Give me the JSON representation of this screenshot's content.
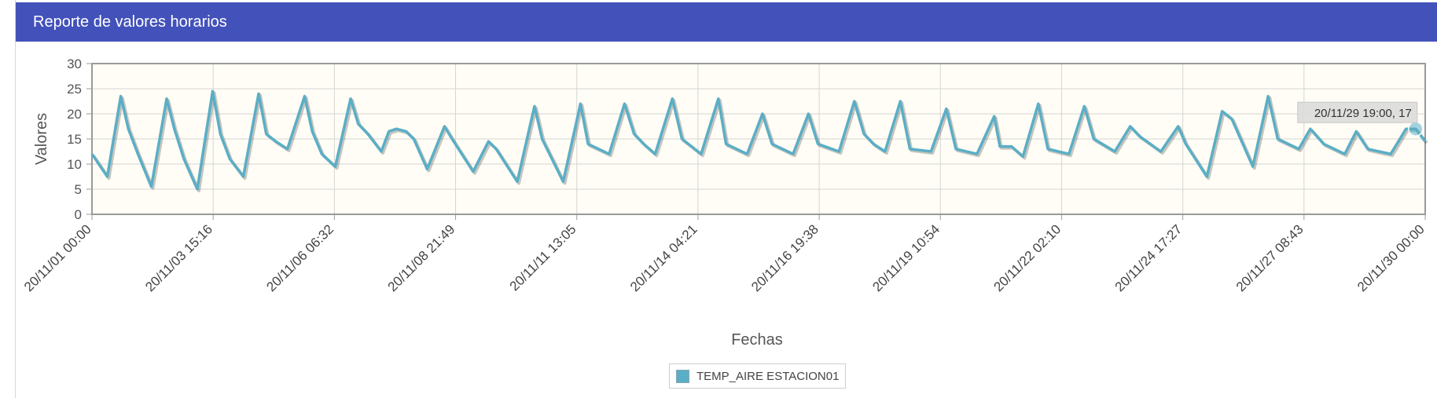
{
  "header": {
    "title": "Reporte de valores horarios"
  },
  "colors": {
    "header_bg": "#4352ba",
    "series": "#5aaec6",
    "plot_bg": "#fffdf5"
  },
  "tooltip": {
    "text": "20/11/29 19:00, 17"
  },
  "chart_data": {
    "type": "line",
    "xlabel": "Fechas",
    "ylabel": "Valores",
    "ylim": [
      0,
      30
    ],
    "yticks": [
      0,
      5,
      10,
      15,
      20,
      25,
      30
    ],
    "xlim": [
      "2020-11-01 00:00",
      "2020-11-30 00:00"
    ],
    "xtick_labels": [
      "20/11/01 00:00",
      "20/11/03 15:16",
      "20/11/06 06:32",
      "20/11/08 21:49",
      "20/11/11 13:05",
      "20/11/14 04:21",
      "20/11/16 19:38",
      "20/11/19 10:54",
      "20/11/22 02:10",
      "20/11/24 17:27",
      "20/11/27 08:43",
      "20/11/30 00:00"
    ],
    "grid": true,
    "legend_position": "bottom-center",
    "highlighted_point": {
      "x": "2020-11-29 19:00",
      "y": 17
    },
    "series": [
      {
        "name": "TEMP_AIRE ESTACION01",
        "points": [
          [
            "2020-11-01 00:00",
            12
          ],
          [
            "2020-11-01 08:00",
            7.5
          ],
          [
            "2020-11-01 15:00",
            23.5
          ],
          [
            "2020-11-01 19:00",
            17
          ],
          [
            "2020-11-02 00:00",
            12
          ],
          [
            "2020-11-02 07:00",
            5.5
          ],
          [
            "2020-11-02 15:00",
            23
          ],
          [
            "2020-11-02 19:00",
            17
          ],
          [
            "2020-11-03 00:00",
            11
          ],
          [
            "2020-11-03 07:00",
            5
          ],
          [
            "2020-11-03 15:00",
            24.5
          ],
          [
            "2020-11-03 19:00",
            16
          ],
          [
            "2020-11-04 00:00",
            11
          ],
          [
            "2020-11-04 07:00",
            7.5
          ],
          [
            "2020-11-04 15:00",
            24
          ],
          [
            "2020-11-04 19:00",
            16
          ],
          [
            "2020-11-05 00:00",
            14.5
          ],
          [
            "2020-11-05 06:00",
            13
          ],
          [
            "2020-11-05 15:00",
            23.5
          ],
          [
            "2020-11-05 19:00",
            16.5
          ],
          [
            "2020-11-06 00:00",
            12
          ],
          [
            "2020-11-06 07:00",
            9.5
          ],
          [
            "2020-11-06 15:00",
            23
          ],
          [
            "2020-11-06 19:00",
            18
          ],
          [
            "2020-11-07 00:00",
            16
          ],
          [
            "2020-11-07 07:00",
            12.5
          ],
          [
            "2020-11-07 11:00",
            16.5
          ],
          [
            "2020-11-07 15:00",
            17
          ],
          [
            "2020-11-07 20:00",
            16.5
          ],
          [
            "2020-11-08 00:00",
            15
          ],
          [
            "2020-11-08 07:00",
            9
          ],
          [
            "2020-11-08 16:00",
            17.5
          ],
          [
            "2020-11-08 20:00",
            15
          ],
          [
            "2020-11-09 07:00",
            8.5
          ],
          [
            "2020-11-09 15:00",
            14.5
          ],
          [
            "2020-11-09 19:00",
            13
          ],
          [
            "2020-11-10 06:00",
            6.5
          ],
          [
            "2020-11-10 15:00",
            21.5
          ],
          [
            "2020-11-10 19:00",
            15
          ],
          [
            "2020-11-11 06:00",
            6.5
          ],
          [
            "2020-11-11 15:00",
            22
          ],
          [
            "2020-11-11 19:00",
            14
          ],
          [
            "2020-11-12 06:00",
            12
          ],
          [
            "2020-11-12 14:00",
            22
          ],
          [
            "2020-11-12 19:00",
            16
          ],
          [
            "2020-11-13 00:00",
            14
          ],
          [
            "2020-11-13 06:00",
            12
          ],
          [
            "2020-11-13 15:00",
            23
          ],
          [
            "2020-11-13 20:00",
            15
          ],
          [
            "2020-11-14 06:00",
            12
          ],
          [
            "2020-11-14 15:00",
            23
          ],
          [
            "2020-11-14 19:00",
            14
          ],
          [
            "2020-11-15 06:00",
            12
          ],
          [
            "2020-11-15 14:00",
            20
          ],
          [
            "2020-11-15 19:00",
            14
          ],
          [
            "2020-11-16 06:00",
            12
          ],
          [
            "2020-11-16 14:00",
            20
          ],
          [
            "2020-11-16 19:00",
            14
          ],
          [
            "2020-11-17 06:00",
            12.5
          ],
          [
            "2020-11-17 14:00",
            22.5
          ],
          [
            "2020-11-17 19:00",
            16
          ],
          [
            "2020-11-18 00:00",
            14
          ],
          [
            "2020-11-18 06:00",
            12.5
          ],
          [
            "2020-11-18 14:00",
            22.5
          ],
          [
            "2020-11-18 19:00",
            13
          ],
          [
            "2020-11-19 06:00",
            12.5
          ],
          [
            "2020-11-19 14:00",
            21
          ],
          [
            "2020-11-19 19:00",
            13
          ],
          [
            "2020-11-20 06:00",
            12
          ],
          [
            "2020-11-20 15:00",
            19.5
          ],
          [
            "2020-11-20 18:00",
            13.5
          ],
          [
            "2020-11-21 00:00",
            13.5
          ],
          [
            "2020-11-21 06:00",
            11.5
          ],
          [
            "2020-11-21 14:00",
            22
          ],
          [
            "2020-11-21 19:00",
            13
          ],
          [
            "2020-11-22 06:00",
            12
          ],
          [
            "2020-11-22 14:00",
            21.5
          ],
          [
            "2020-11-22 19:00",
            15
          ],
          [
            "2020-11-23 06:00",
            12.5
          ],
          [
            "2020-11-23 14:00",
            17.5
          ],
          [
            "2020-11-23 19:00",
            15.5
          ],
          [
            "2020-11-24 06:00",
            12.5
          ],
          [
            "2020-11-24 15:00",
            17.5
          ],
          [
            "2020-11-24 19:00",
            14
          ],
          [
            "2020-11-25 06:00",
            7.5
          ],
          [
            "2020-11-25 14:00",
            20.5
          ],
          [
            "2020-11-25 19:00",
            19
          ],
          [
            "2020-11-26 06:00",
            9.5
          ],
          [
            "2020-11-26 14:00",
            23.5
          ],
          [
            "2020-11-26 19:00",
            15
          ],
          [
            "2020-11-27 06:00",
            13
          ],
          [
            "2020-11-27 12:00",
            17
          ],
          [
            "2020-11-27 19:00",
            14
          ],
          [
            "2020-11-28 06:00",
            12
          ],
          [
            "2020-11-28 12:00",
            16.5
          ],
          [
            "2020-11-28 18:00",
            13
          ],
          [
            "2020-11-29 06:00",
            12
          ],
          [
            "2020-11-29 14:00",
            17
          ],
          [
            "2020-11-29 19:00",
            17
          ],
          [
            "2020-11-30 00:00",
            14.5
          ]
        ]
      }
    ]
  }
}
